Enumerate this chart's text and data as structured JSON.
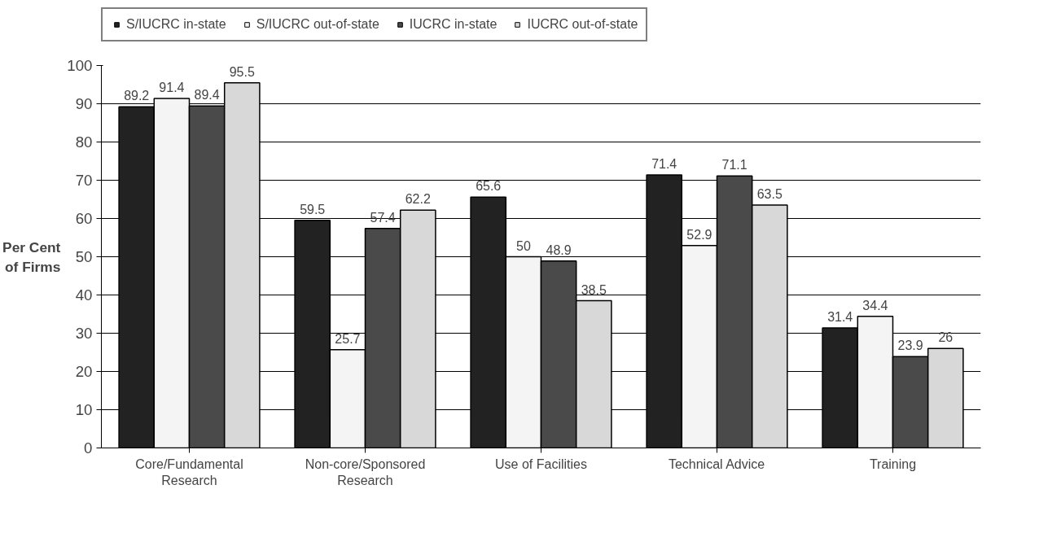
{
  "chart_data": {
    "type": "bar",
    "ylabel": "Per Cent\nof Firms",
    "categories": [
      "Core/Fundamental\nResearch",
      "Non-core/Sponsored\nResearch",
      "Use of Facilities",
      "Technical Advice",
      "Training"
    ],
    "series": [
      {
        "name": "S/IUCRC in-state",
        "color": "#222222",
        "values": [
          89.2,
          59.5,
          65.6,
          71.4,
          31.4
        ]
      },
      {
        "name": "S/IUCRC out-of-state",
        "color": "#f4f4f4",
        "values": [
          91.4,
          25.7,
          50,
          52.9,
          34.4
        ]
      },
      {
        "name": "IUCRC in-state",
        "color": "#4a4a4a",
        "values": [
          89.4,
          57.4,
          48.9,
          71.1,
          23.9
        ]
      },
      {
        "name": "IUCRC out-of-state",
        "color": "#d8d8d8",
        "values": [
          95.5,
          62.2,
          38.5,
          63.5,
          26
        ]
      }
    ],
    "ylim": [
      0,
      100
    ],
    "yticks": [
      0,
      10,
      20,
      30,
      40,
      50,
      60,
      70,
      80,
      90,
      100
    ],
    "grid": "y",
    "legend": "top",
    "data_labels": true
  }
}
